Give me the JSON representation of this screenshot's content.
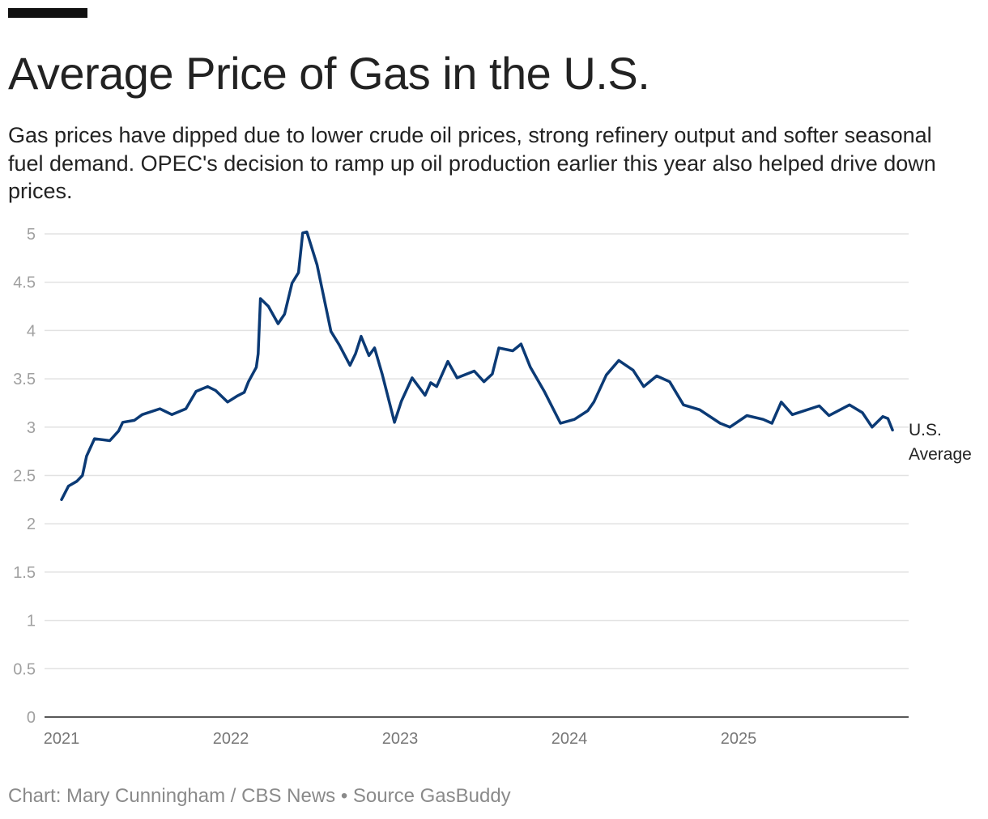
{
  "header": {
    "title": "Average Price of Gas in the U.S.",
    "subtitle": "Gas prices have dipped due to lower crude oil prices, strong refinery output and softer seasonal fuel demand. OPEC's decision to ramp up oil production earlier this year also helped drive down prices."
  },
  "footer": {
    "credit": "Chart: Mary Cunningham / CBS News • Source GasBuddy"
  },
  "chart_data": {
    "type": "line",
    "title": "Average Price of Gas in the U.S.",
    "xlabel": "",
    "ylabel": "",
    "xlim": [
      "2021-01-01",
      "2026-01-01"
    ],
    "ylim": [
      0,
      5
    ],
    "x_ticks": [
      "2021",
      "2022",
      "2023",
      "2024",
      "2025"
    ],
    "y_ticks": [
      "0",
      "0.5",
      "1",
      "1.5",
      "2",
      "2.5",
      "3",
      "3.5",
      "4",
      "4.5",
      "5"
    ],
    "grid": "horizontal",
    "line_color": "#0b3a75",
    "series": [
      {
        "name": "U.S. Average",
        "label_line1": "U.S.",
        "label_line2": "Average",
        "points": [
          [
            "2021-01-01",
            2.25
          ],
          [
            "2021-01-16",
            2.39
          ],
          [
            "2021-02-03",
            2.44
          ],
          [
            "2021-02-15",
            2.5
          ],
          [
            "2021-02-24",
            2.7
          ],
          [
            "2021-03-13",
            2.88
          ],
          [
            "2021-04-15",
            2.86
          ],
          [
            "2021-05-04",
            2.96
          ],
          [
            "2021-05-13",
            3.05
          ],
          [
            "2021-06-07",
            3.07
          ],
          [
            "2021-06-24",
            3.13
          ],
          [
            "2021-08-01",
            3.19
          ],
          [
            "2021-08-27",
            3.13
          ],
          [
            "2021-09-26",
            3.19
          ],
          [
            "2021-10-18",
            3.37
          ],
          [
            "2021-11-12",
            3.42
          ],
          [
            "2021-11-29",
            3.38
          ],
          [
            "2021-12-25",
            3.26
          ],
          [
            "2022-01-14",
            3.32
          ],
          [
            "2022-01-30",
            3.36
          ],
          [
            "2022-02-08",
            3.47
          ],
          [
            "2022-02-25",
            3.62
          ],
          [
            "2022-03-01",
            3.76
          ],
          [
            "2022-03-06",
            4.33
          ],
          [
            "2022-03-23",
            4.25
          ],
          [
            "2022-04-13",
            4.07
          ],
          [
            "2022-04-27",
            4.17
          ],
          [
            "2022-05-13",
            4.49
          ],
          [
            "2022-05-27",
            4.6
          ],
          [
            "2022-06-05",
            5.01
          ],
          [
            "2022-06-14",
            5.02
          ],
          [
            "2022-07-06",
            4.68
          ],
          [
            "2022-08-05",
            3.99
          ],
          [
            "2022-08-23",
            3.85
          ],
          [
            "2022-09-15",
            3.64
          ],
          [
            "2022-09-27",
            3.76
          ],
          [
            "2022-10-09",
            3.94
          ],
          [
            "2022-10-26",
            3.74
          ],
          [
            "2022-11-07",
            3.82
          ],
          [
            "2022-11-24",
            3.54
          ],
          [
            "2022-12-20",
            3.05
          ],
          [
            "2023-01-04",
            3.27
          ],
          [
            "2023-01-27",
            3.51
          ],
          [
            "2023-02-24",
            3.33
          ],
          [
            "2023-03-08",
            3.46
          ],
          [
            "2023-03-21",
            3.42
          ],
          [
            "2023-04-14",
            3.68
          ],
          [
            "2023-05-04",
            3.51
          ],
          [
            "2023-06-10",
            3.58
          ],
          [
            "2023-07-01",
            3.47
          ],
          [
            "2023-07-19",
            3.55
          ],
          [
            "2023-08-02",
            3.82
          ],
          [
            "2023-09-01",
            3.79
          ],
          [
            "2023-09-19",
            3.86
          ],
          [
            "2023-10-09",
            3.62
          ],
          [
            "2023-11-08",
            3.37
          ],
          [
            "2023-12-13",
            3.04
          ],
          [
            "2024-01-12",
            3.08
          ],
          [
            "2024-02-10",
            3.17
          ],
          [
            "2024-02-23",
            3.26
          ],
          [
            "2024-03-21",
            3.54
          ],
          [
            "2024-04-17",
            3.69
          ],
          [
            "2024-05-18",
            3.59
          ],
          [
            "2024-06-10",
            3.42
          ],
          [
            "2024-07-08",
            3.53
          ],
          [
            "2024-08-05",
            3.47
          ],
          [
            "2024-09-04",
            3.23
          ],
          [
            "2024-10-09",
            3.18
          ],
          [
            "2024-11-22",
            3.04
          ],
          [
            "2024-12-13",
            3.0
          ],
          [
            "2025-01-19",
            3.12
          ],
          [
            "2025-02-23",
            3.08
          ],
          [
            "2025-03-14",
            3.04
          ],
          [
            "2025-04-03",
            3.26
          ],
          [
            "2025-04-27",
            3.13
          ],
          [
            "2025-06-24",
            3.22
          ],
          [
            "2025-07-15",
            3.12
          ],
          [
            "2025-08-28",
            3.23
          ],
          [
            "2025-09-25",
            3.15
          ],
          [
            "2025-10-16",
            3.0
          ],
          [
            "2025-11-08",
            3.11
          ],
          [
            "2025-11-19",
            3.09
          ],
          [
            "2025-11-29",
            2.97
          ]
        ]
      }
    ]
  }
}
